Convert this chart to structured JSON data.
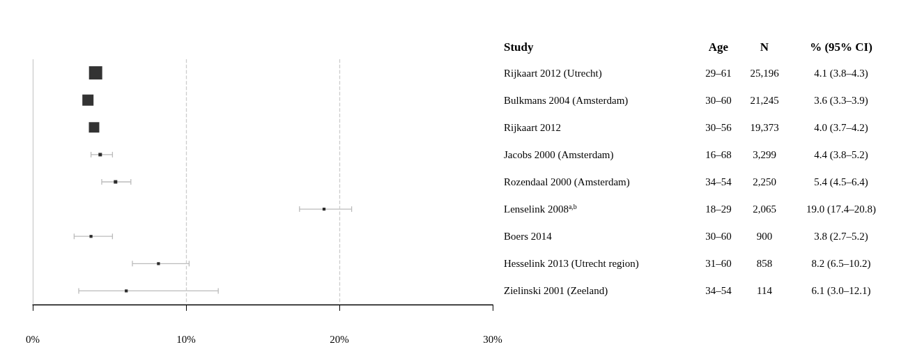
{
  "chart_data": {
    "type": "scatter",
    "orientation": "horizontal",
    "marker": "square",
    "categories": [
      "Rijkaart 2012 (Utrecht)",
      "Bulkmans 2004 (Amsterdam)",
      "Rijkaart 2012",
      "Jacobs 2000 (Amsterdam)",
      "Rozendaal 2000 (Amsterdam)",
      "Lenselink 2008$^{a,b}$",
      "Boers 2014",
      "Hesselink 2013 (Utrecht region)",
      "Zielinski 2001 (Zeeland)"
    ],
    "series": [
      {
        "color": "#000000",
        "values": [
          4.1,
          3.6,
          4.0,
          4.4,
          5.4,
          19.0,
          3.8,
          8.2,
          6.1
        ],
        "errors": [
          null,
          null,
          null,
          [
            3.8,
            5.2
          ],
          [
            4.5,
            6.4
          ],
          [
            17.4,
            20.8
          ],
          [
            2.7,
            5.2
          ],
          [
            6.5,
            10.2
          ],
          [
            3.0,
            12.1
          ]
        ],
        "sizes": [
          1,
          0.71,
          0.62,
          0.07,
          0.07,
          0.05,
          0.05,
          0.05,
          0.05
        ]
      }
    ],
    "xlim": [
      0,
      30
    ],
    "xticks": [
      {
        "value": 0,
        "label": "0%"
      },
      {
        "value": 10,
        "label": "10%"
      },
      {
        "value": 20,
        "label": "20%"
      },
      {
        "value": 30,
        "label": "30%"
      }
    ],
    "ref_lines": [
      {
        "axis": "x",
        "value": 0,
        "color": "#cccccc",
        "line_style": "solid"
      },
      {
        "axis": "x",
        "value": 10,
        "color": "#cccccc",
        "line_style": "dashed"
      },
      {
        "axis": "x",
        "value": 20,
        "color": "#cccccc",
        "line_style": "dashed"
      }
    ],
    "annotations": [
      "Study",
      "Age",
      "N",
      "% (95% CI)",
      "29–61",
      "25,196",
      "4.1 (3.8–4.3)",
      "30–60",
      "21,245",
      "3.6 (3.3–3.9)",
      "30–56",
      "19,373",
      "4.0 (3.7–4.2)",
      "16–68",
      "3,299",
      "4.4 (3.8–5.2)",
      "34–54",
      "2,250",
      "5.4 (4.5–6.4)",
      "18–29",
      "2,065",
      "19.0 (17.4–20.8)",
      "30–60",
      "900",
      "3.8 (2.7–5.2)",
      "31–60",
      "858",
      "8.2 (6.5–10.2)",
      "34–54",
      "114",
      "6.1 (3.0–12.1)"
    ]
  }
}
